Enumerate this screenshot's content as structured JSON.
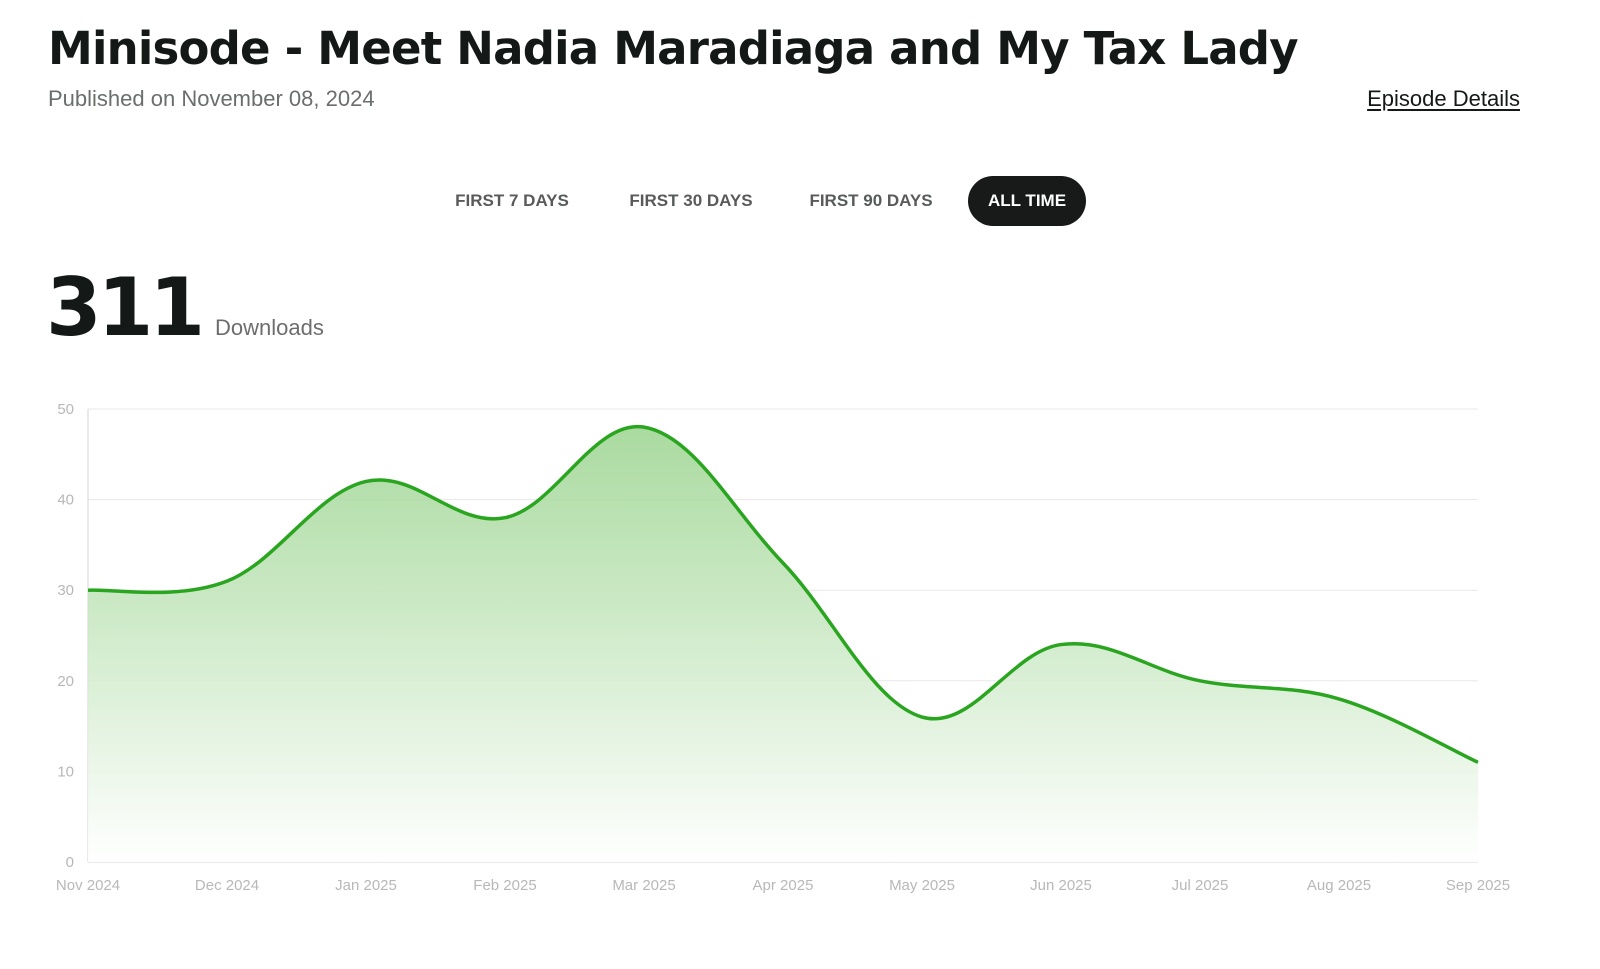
{
  "episode": {
    "title": "Minisode - Meet Nadia Maradiaga and My Tax Lady",
    "published": "Published on November 08, 2024",
    "details_link": "Episode Details"
  },
  "range_tabs": [
    {
      "label": "FIRST 7 DAYS",
      "active": false
    },
    {
      "label": "FIRST 30 DAYS",
      "active": false
    },
    {
      "label": "FIRST 90 DAYS",
      "active": false
    },
    {
      "label": "ALL TIME",
      "active": true
    }
  ],
  "summary": {
    "total": "311",
    "label": "Downloads"
  },
  "colors": {
    "line": "#2aa520",
    "fill_top": "#9bd48f",
    "fill_bottom": "#ffffff",
    "grid": "#e8e8e8",
    "axis_text": "#b8b8b8",
    "active_tab": "#171a19"
  },
  "chart_data": {
    "type": "area",
    "categories": [
      "Nov 2024",
      "Dec 2024",
      "Jan 2025",
      "Feb 2025",
      "Mar 2025",
      "Apr 2025",
      "May 2025",
      "Jun 2025",
      "Jul 2025",
      "Aug 2025",
      "Sep 2025"
    ],
    "series": [
      {
        "values": [
          30,
          31,
          42,
          38,
          48,
          33,
          16,
          24,
          20,
          18,
          11
        ]
      }
    ],
    "ylim": [
      0,
      50
    ],
    "yticks": [
      0,
      10,
      20,
      30,
      40,
      50
    ],
    "grid": true,
    "curve": "smooth",
    "xlabel": "",
    "ylabel": ""
  }
}
